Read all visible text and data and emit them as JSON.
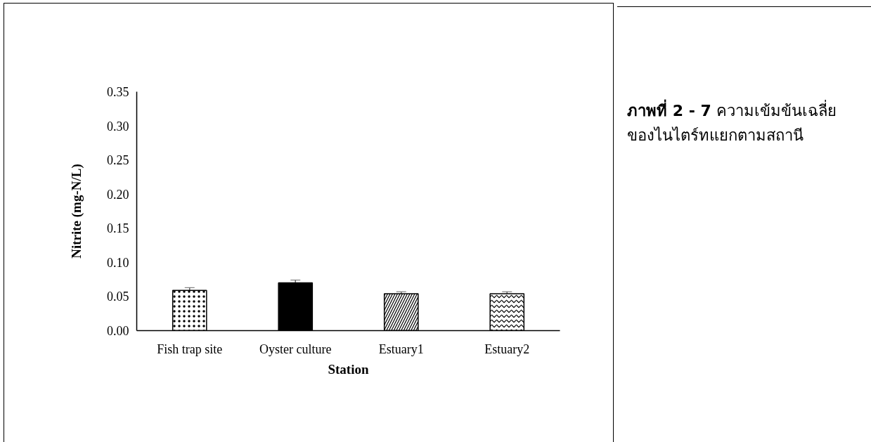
{
  "chart_data": {
    "type": "bar",
    "title": "ภาพที่ 2 - 7",
    "annotations": [
      "ความเข้มข้นเฉลี่ยของไนไตร์ทแยกตามสถานี"
    ],
    "xlabel": "Station",
    "ylabel": "Nitrite (mg-N/L)",
    "categories": [
      "Fish trap site",
      "Oyster culture",
      "Estuary1",
      "Estuary2"
    ],
    "values": [
      0.059,
      0.07,
      0.054,
      0.054
    ],
    "errors": [
      0.004,
      0.004,
      0.003,
      0.003
    ],
    "colors": [
      "#ffffff",
      "#000000",
      "#ffffff",
      "#ffffff"
    ],
    "ylim": [
      0,
      0.35
    ],
    "yticks": [
      {
        "value": 0,
        "label": "0.00"
      },
      {
        "value": 0.05,
        "label": "0.05"
      },
      {
        "value": 0.1,
        "label": "0.10"
      },
      {
        "value": 0.15,
        "label": "0.15"
      },
      {
        "value": 0.2,
        "label": "0.20"
      },
      {
        "value": 0.25,
        "label": "0.25"
      },
      {
        "value": 0.3,
        "label": "0.30"
      },
      {
        "value": 0.35,
        "label": "0.35"
      }
    ],
    "grid": false
  }
}
